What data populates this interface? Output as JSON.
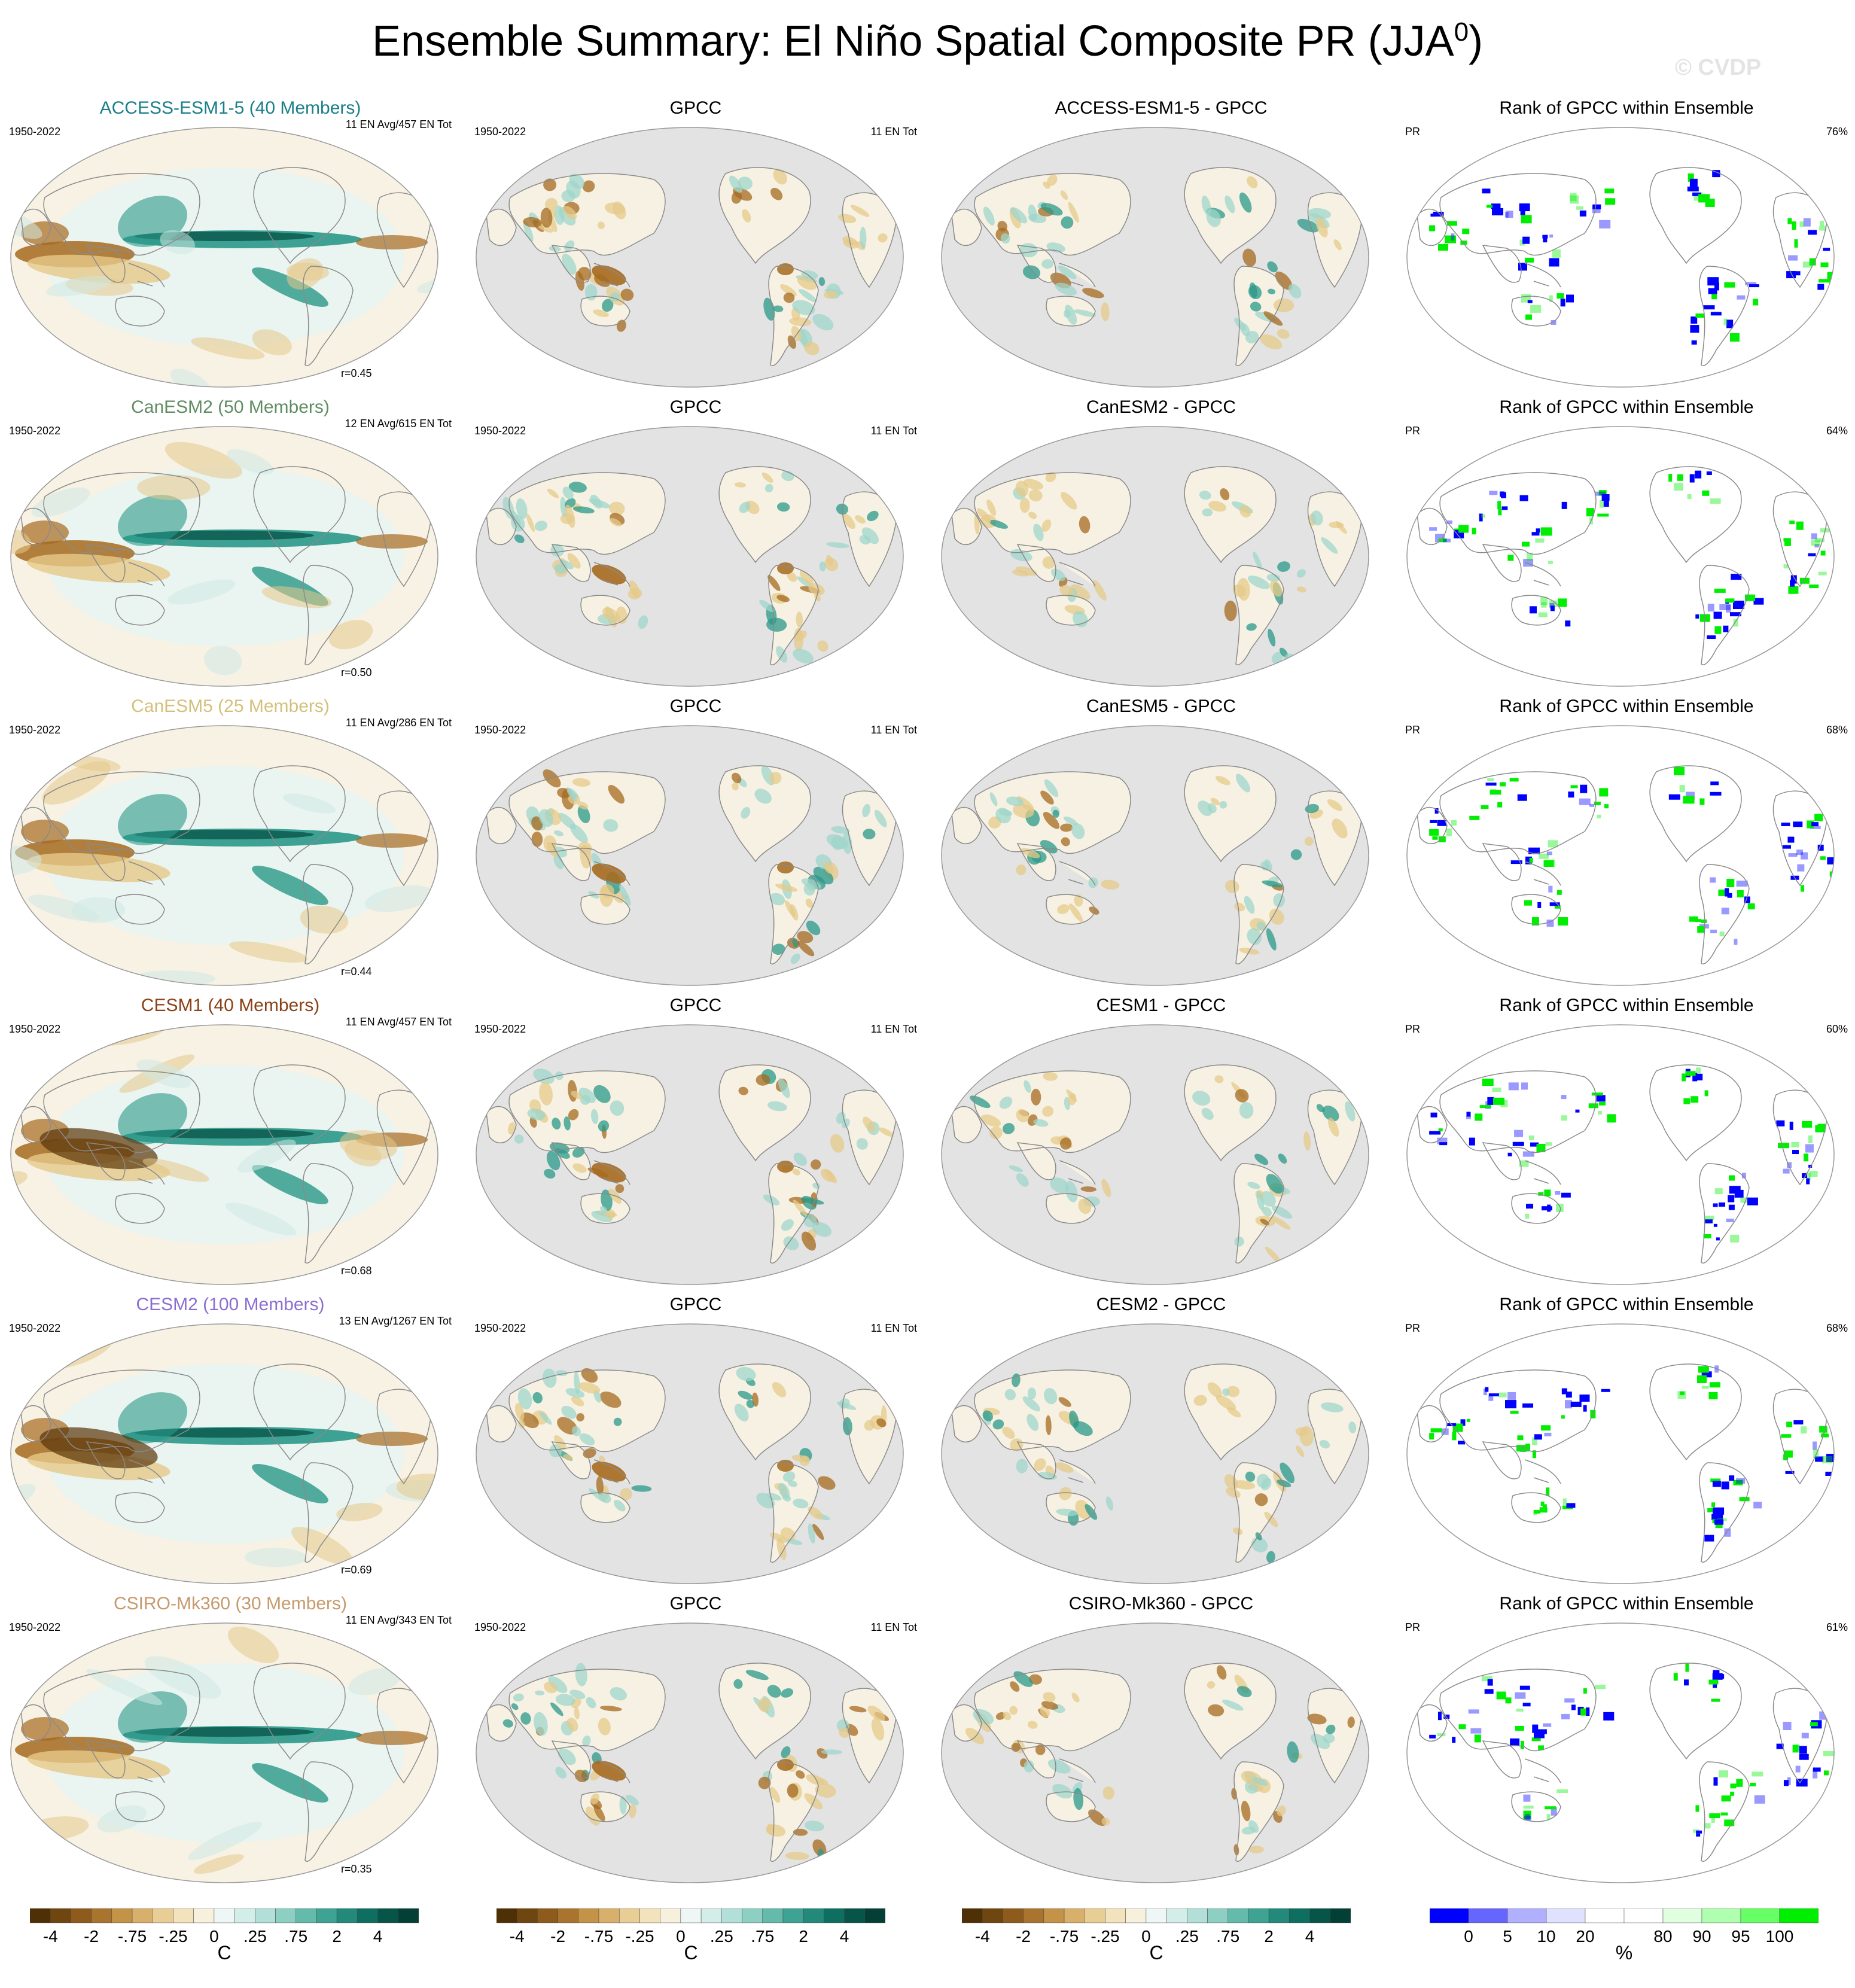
{
  "header": {
    "title_text": "Ensemble Summary: El Niño Spatial Composite PR (JJA",
    "title_sup": "0",
    "title_close": ")",
    "watermark": "© CVDP"
  },
  "period": "1950-2022",
  "rank_var": "PR",
  "obs_name": "GPCC",
  "obs_count": "11 EN Tot",
  "rank_title": "Rank of GPCC within Ensemble",
  "colors": {
    "ocean_gray": "#e3e3e3",
    "land_outline": "#8a8a8a",
    "brown_dark": "#5a3508",
    "brown": "#a66a1f",
    "tan": "#e6c98a",
    "teal": "#2a9888",
    "teal_dark": "#0b5a4e",
    "rank_blue": "#0000ff",
    "rank_green": "#00ee00"
  },
  "rows": [
    {
      "model_title": "ACCESS-ESM1-5 (40 Members)",
      "title_color": "#1a7f8a",
      "ens_count": "11 EN Avg/457 EN Tot",
      "diff_title": "ACCESS-ESM1-5 - GPCC",
      "r": "r=0.45",
      "pct": "76%"
    },
    {
      "model_title": "CanESM2 (50 Members)",
      "title_color": "#5f8d62",
      "ens_count": "12 EN Avg/615 EN Tot",
      "diff_title": "CanESM2 - GPCC",
      "r": "r=0.50",
      "pct": "64%"
    },
    {
      "model_title": "CanESM5 (25 Members)",
      "title_color": "#d4c07a",
      "ens_count": "11 EN Avg/286 EN Tot",
      "diff_title": "CanESM5 - GPCC",
      "r": "r=0.44",
      "pct": "68%"
    },
    {
      "model_title": "CESM1 (40 Members)",
      "title_color": "#8a4016",
      "ens_count": "11 EN Avg/457 EN Tot",
      "diff_title": "CESM1 - GPCC",
      "r": "r=0.68",
      "pct": "60%"
    },
    {
      "model_title": "CESM2 (100 Members)",
      "title_color": "#8b6fd0",
      "ens_count": "13 EN Avg/1267 EN Tot",
      "diff_title": "CESM2 - GPCC",
      "r": "r=0.69",
      "pct": "68%"
    },
    {
      "model_title": "CSIRO-Mk360 (30 Members)",
      "title_color": "#c79a6d",
      "ens_count": "11 EN Avg/343 EN Tot",
      "diff_title": "CSIRO-Mk360 - GPCC",
      "r": "r=0.35",
      "pct": "61%"
    }
  ],
  "colorbars": {
    "diverging": {
      "colors": [
        "#4f2f05",
        "#6f4510",
        "#8e5b1c",
        "#a9752e",
        "#c49347",
        "#d8b06b",
        "#e8cd94",
        "#f3e3bd",
        "#f7f0dc",
        "#eef7f6",
        "#d3ede9",
        "#b2e0d8",
        "#8dcfc3",
        "#64baab",
        "#3ea393",
        "#22897b",
        "#0e6f61",
        "#065548",
        "#043f36"
      ],
      "labels": [
        "-4",
        "-2",
        "-.75",
        "-.25",
        "0",
        ".25",
        ".75",
        "2",
        "4"
      ],
      "label_after_box": [
        1,
        3,
        5,
        7,
        9,
        11,
        13,
        15,
        17
      ],
      "units": "C"
    },
    "rank": {
      "colors": [
        "#0000ff",
        "#6666ff",
        "#b0b0ff",
        "#e0e0ff",
        "#ffffff",
        "#ffffff",
        "#e0ffe0",
        "#b0ffb0",
        "#66ff66",
        "#00ee00"
      ],
      "labels": [
        "0",
        "5",
        "10",
        "20",
        "80",
        "90",
        "95",
        "100"
      ],
      "label_after_box": [
        1,
        2,
        3,
        4,
        6,
        7,
        8,
        9
      ],
      "units": "%"
    }
  },
  "chart_data": [
    {
      "type": "heatmap",
      "title": "Ensemble Summary: El Niño Spatial Composite PR (JJA0)",
      "panels_per_row": [
        "model ensemble composite",
        "GPCC",
        "model - GPCC",
        "Rank of GPCC within Ensemble"
      ],
      "rows": [
        "ACCESS-ESM1-5",
        "CanESM2",
        "CanESM5",
        "CESM1",
        "CESM2",
        "CSIRO-Mk360"
      ],
      "pattern_correlations": [
        0.45,
        0.5,
        0.44,
        0.68,
        0.69,
        0.35
      ],
      "rank_percent_within": [
        76,
        64,
        68,
        60,
        68,
        61
      ],
      "colorbar_composite": {
        "ticks": [
          -4,
          -2,
          -0.75,
          -0.25,
          0,
          0.25,
          0.75,
          2,
          4
        ],
        "units": "C"
      },
      "colorbar_rank": {
        "ticks": [
          0,
          5,
          10,
          20,
          80,
          90,
          95,
          100
        ],
        "units": "%"
      }
    }
  ]
}
